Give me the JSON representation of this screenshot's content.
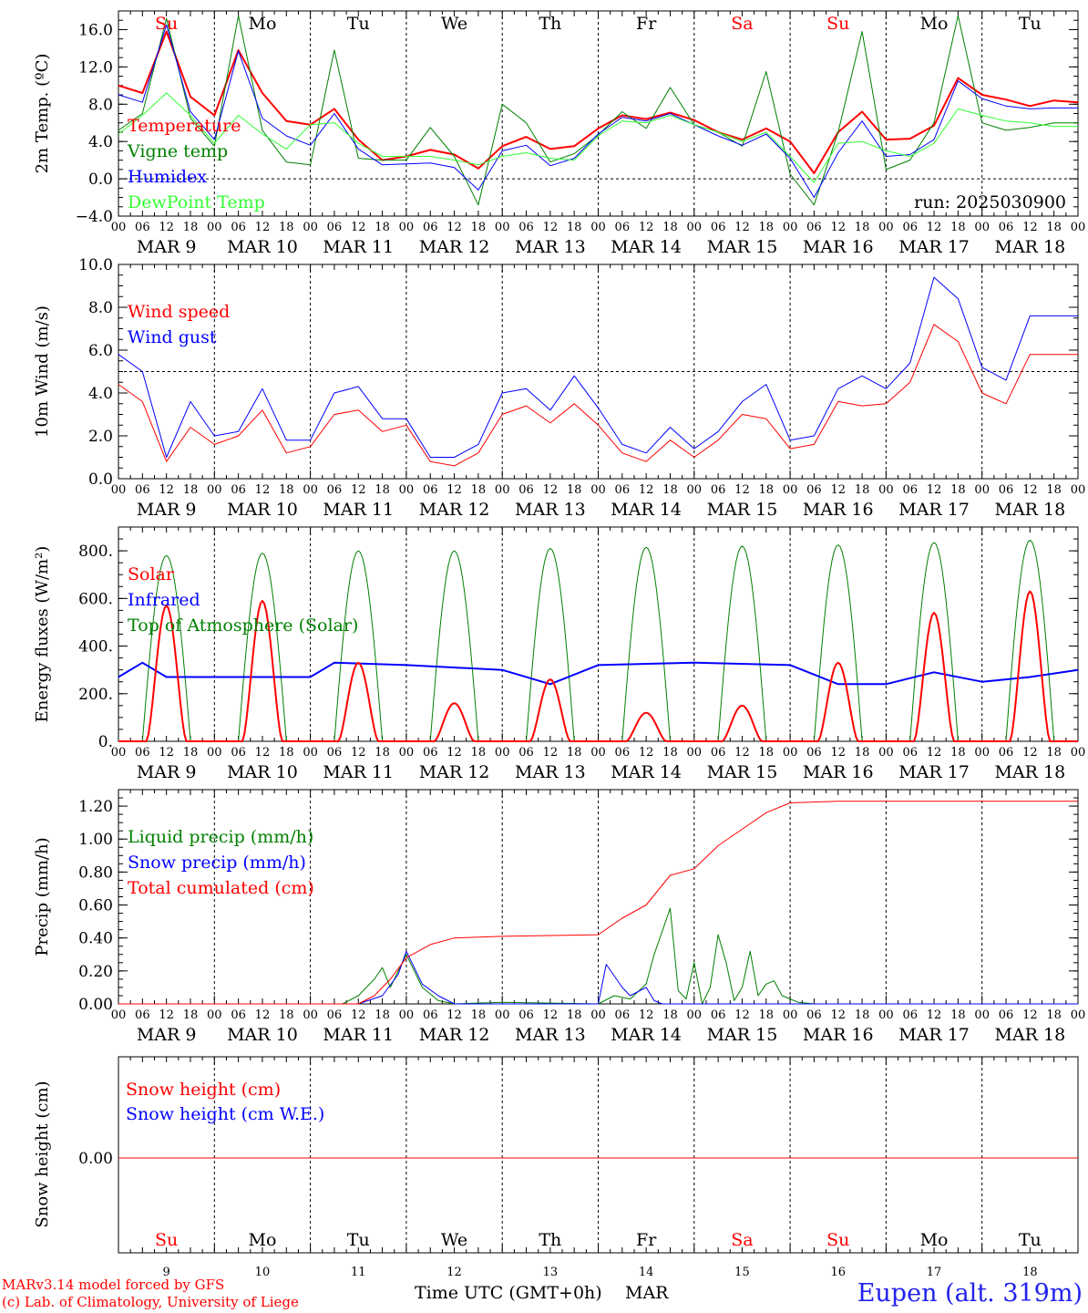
{
  "page": {
    "credit_line1": "MARv3.14 model forced by GFS",
    "credit_line2": "(c) Lab. of Climatology, University of Liege",
    "xlabel": "Time UTC (GMT+0h)",
    "month_label": "MAR",
    "station": "Eupen (alt. 319m)"
  },
  "x_axis": {
    "hour_ticks": [
      "00",
      "06",
      "12",
      "18"
    ],
    "end_tick": "00",
    "dates": [
      "MAR  9",
      "MAR 10",
      "MAR 11",
      "MAR 12",
      "MAR 13",
      "MAR 14",
      "MAR 15",
      "MAR 16",
      "MAR 17",
      "MAR 18"
    ],
    "day_numbers": [
      "9",
      "10",
      "11",
      "12",
      "13",
      "14",
      "15",
      "16",
      "17",
      "18"
    ],
    "weekdays": [
      "Su",
      "Mo",
      "Tu",
      "We",
      "Th",
      "Fr",
      "Sa",
      "Su",
      "Mo",
      "Tu"
    ],
    "weekend_color": "#ff0000",
    "weekday_color": "#000000",
    "weekend_flags": [
      true,
      false,
      false,
      false,
      false,
      false,
      true,
      true,
      false,
      false
    ]
  },
  "chart_data": [
    {
      "type": "line",
      "ylabel": "2m Temp. (ºC)",
      "ylim": [
        -4,
        18
      ],
      "yticks": [
        -4,
        0,
        4,
        8,
        12,
        16
      ],
      "ytick_labels": [
        "−4.0",
        "0.0",
        "4.0",
        "8.0",
        "12.0",
        "16.0"
      ],
      "ref_line": 0,
      "annotation": "run: 2025030900",
      "x_hours": [
        0,
        6,
        12,
        18,
        24,
        30,
        36,
        42,
        48,
        54,
        60,
        66,
        72,
        78,
        84,
        90,
        96,
        102,
        108,
        114,
        120,
        126,
        132,
        138,
        144,
        150,
        156,
        162,
        168,
        174,
        180,
        186,
        192,
        198,
        204,
        210,
        216,
        222,
        228,
        234,
        240
      ],
      "series": [
        {
          "name": "Temperature",
          "color": "#ff0000",
          "width": 2,
          "values": [
            10,
            9.2,
            15.8,
            8.8,
            6.8,
            13.8,
            9.2,
            6.2,
            5.8,
            7.5,
            4.2,
            2,
            2.4,
            3.1,
            2.6,
            1.1,
            3.5,
            4.5,
            3.2,
            3.5,
            5.4,
            6.8,
            6.4,
            7.1,
            6.3,
            5,
            4.2,
            5.4,
            4,
            0.6,
            5,
            7.2,
            4.2,
            4.3,
            5.7,
            10.8,
            9,
            8.5,
            7.8,
            8.4,
            8.2
          ]
        },
        {
          "name": "Vigne temp",
          "color": "#008000",
          "width": 1,
          "values": [
            5.2,
            7,
            17.2,
            6.5,
            3.5,
            17.5,
            5.2,
            1.8,
            1.5,
            13.8,
            2.2,
            2,
            2,
            5.5,
            2.4,
            -2.8,
            8,
            6,
            1.8,
            2.7,
            4.7,
            7.2,
            5.4,
            9.8,
            5.8,
            5,
            3.5,
            11.5,
            0.5,
            -2.8,
            5,
            15.8,
            1,
            2,
            6,
            17.5,
            6,
            5.2,
            5.5,
            6,
            6
          ]
        },
        {
          "name": "Humidex",
          "color": "#0000ff",
          "width": 1,
          "values": [
            9,
            8.2,
            16.5,
            7.2,
            4.2,
            13.7,
            6.5,
            4.6,
            3.6,
            7,
            3.2,
            1.5,
            1.6,
            1.7,
            1.2,
            -1.2,
            3,
            3.6,
            1.4,
            2.2,
            4.8,
            6.6,
            6.2,
            7,
            5.8,
            4.6,
            3.6,
            4.8,
            2.2,
            -2,
            2.8,
            6.2,
            2.4,
            2.6,
            4.2,
            10.5,
            8.6,
            7.8,
            7.5,
            7.6,
            7.6
          ]
        },
        {
          "name": "DewPoint Temp",
          "color": "#33ff33",
          "width": 1,
          "values": [
            4.8,
            6.8,
            9.2,
            6.8,
            3.8,
            6.8,
            4.8,
            3.2,
            5.8,
            6,
            3.8,
            2.4,
            2.4,
            2.4,
            2,
            1.5,
            2.4,
            2.8,
            2.2,
            2,
            4.6,
            6.2,
            6,
            6.8,
            5.8,
            5,
            4,
            5,
            2.4,
            -0.4,
            3.8,
            4,
            3,
            2.4,
            3.8,
            7.5,
            6.8,
            6.2,
            6,
            5.6,
            5.6
          ]
        }
      ]
    },
    {
      "type": "line",
      "ylabel": "10m Wind (m/s)",
      "ylim": [
        0,
        10
      ],
      "yticks": [
        0,
        2,
        4,
        6,
        8,
        10
      ],
      "ytick_labels": [
        "0.0",
        "2.0",
        "4.0",
        "6.0",
        "8.0",
        "10.0"
      ],
      "ref_line": 5,
      "x_hours": [
        0,
        6,
        12,
        18,
        24,
        30,
        36,
        42,
        48,
        54,
        60,
        66,
        72,
        78,
        84,
        90,
        96,
        102,
        108,
        114,
        120,
        126,
        132,
        138,
        144,
        150,
        156,
        162,
        168,
        174,
        180,
        186,
        192,
        198,
        204,
        210,
        216,
        222,
        228,
        234,
        240
      ],
      "series": [
        {
          "name": "Wind speed",
          "color": "#ff0000",
          "width": 1,
          "values": [
            4.4,
            3.6,
            0.8,
            2.4,
            1.6,
            2,
            3.2,
            1.2,
            1.5,
            3,
            3.2,
            2.2,
            2.5,
            0.8,
            0.6,
            1.2,
            3,
            3.4,
            2.6,
            3.5,
            2.5,
            1.2,
            0.8,
            1.8,
            1,
            1.8,
            3,
            2.8,
            1.4,
            1.6,
            3.6,
            3.4,
            3.5,
            4.5,
            7.2,
            6.4,
            4,
            3.5,
            5.8,
            5.8,
            5.8
          ]
        },
        {
          "name": "Wind gust",
          "color": "#0000ff",
          "width": 1,
          "values": [
            5.8,
            5,
            1,
            3.6,
            2,
            2.2,
            4.2,
            1.8,
            1.8,
            4,
            4.3,
            2.8,
            2.8,
            1,
            1,
            1.6,
            4,
            4.2,
            3.2,
            4.8,
            3.3,
            1.6,
            1.2,
            2.4,
            1.4,
            2.2,
            3.6,
            4.4,
            1.8,
            2,
            4.2,
            4.8,
            4.2,
            5.4,
            9.4,
            8.4,
            5.2,
            4.6,
            7.6,
            7.6,
            7.6
          ]
        }
      ]
    },
    {
      "type": "line",
      "ylabel": "Energy fluxes (W/m²)",
      "ylim": [
        0,
        900
      ],
      "yticks": [
        0,
        200,
        400,
        600,
        800
      ],
      "ytick_labels": [
        "0.",
        "200.",
        "400.",
        "600.",
        "800."
      ],
      "top_peaks": [
        780,
        790,
        800,
        800,
        810,
        815,
        820,
        825,
        835,
        845
      ],
      "solar_peaks": [
        570,
        590,
        330,
        160,
        260,
        120,
        150,
        330,
        540,
        630
      ],
      "infrared": {
        "x_hours": [
          0,
          6,
          12,
          24,
          48,
          54,
          72,
          96,
          108,
          120,
          144,
          168,
          180,
          192,
          204,
          216,
          228,
          240
        ],
        "values": [
          270,
          330,
          270,
          270,
          270,
          330,
          320,
          300,
          240,
          320,
          330,
          320,
          240,
          240,
          290,
          250,
          270,
          300
        ]
      },
      "series": [
        {
          "name": "Solar",
          "color": "#ff0000",
          "width": 2
        },
        {
          "name": "Infrared",
          "color": "#0000ff",
          "width": 2
        },
        {
          "name": "Top of Atmosphere (Solar)",
          "color": "#008000",
          "width": 1
        }
      ]
    },
    {
      "type": "line",
      "ylabel": "Precip (mm/h)",
      "ylim": [
        0,
        1.3
      ],
      "yticks": [
        0,
        0.2,
        0.4,
        0.6,
        0.8,
        1.0,
        1.2
      ],
      "ytick_labels": [
        "0.00",
        "0.20",
        "0.40",
        "0.60",
        "0.80",
        "1.00",
        "1.20"
      ],
      "series": [
        {
          "name": "Liquid precip (mm/h)",
          "color": "#008000",
          "width": 1,
          "x_hours": [
            0,
            56,
            60,
            64,
            66,
            68,
            72,
            76,
            80,
            84,
            96,
            120,
            124,
            128,
            132,
            134,
            138,
            140,
            142,
            144,
            146,
            148,
            150,
            152,
            154,
            156,
            158,
            160,
            162,
            164,
            166,
            168,
            170,
            174,
            240
          ],
          "values": [
            0,
            0,
            0.05,
            0.15,
            0.22,
            0.1,
            0.3,
            0.1,
            0.02,
            0,
            0.01,
            0,
            0.05,
            0.03,
            0.12,
            0.3,
            0.58,
            0.08,
            0.03,
            0.25,
            0,
            0.1,
            0.42,
            0.25,
            0.02,
            0.1,
            0.32,
            0.05,
            0.12,
            0.14,
            0.05,
            0.03,
            0.01,
            0,
            0
          ]
        },
        {
          "name": "Snow precip (mm/h)",
          "color": "#0000ff",
          "width": 1,
          "x_hours": [
            0,
            60,
            66,
            70,
            72,
            76,
            80,
            84,
            96,
            120,
            122,
            126,
            128,
            132,
            134,
            136,
            138,
            240
          ],
          "values": [
            0,
            0,
            0.05,
            0.18,
            0.32,
            0.12,
            0.05,
            0,
            0,
            0,
            0.24,
            0.1,
            0.05,
            0.1,
            0.02,
            0,
            0,
            0
          ]
        },
        {
          "name": "Total cumulated (cm)",
          "color": "#ff0000",
          "width": 1,
          "x_hours": [
            0,
            60,
            64,
            68,
            72,
            78,
            84,
            96,
            120,
            126,
            132,
            138,
            144,
            150,
            156,
            162,
            168,
            180,
            240
          ],
          "values": [
            0,
            0,
            0.05,
            0.15,
            0.28,
            0.36,
            0.4,
            0.41,
            0.42,
            0.52,
            0.6,
            0.78,
            0.82,
            0.96,
            1.06,
            1.16,
            1.22,
            1.23,
            1.23
          ]
        }
      ]
    },
    {
      "type": "line",
      "ylabel": "Snow height (cm)",
      "yticks": [
        0
      ],
      "ytick_labels": [
        "0.00"
      ],
      "series": [
        {
          "name": "Snow height (cm)",
          "color": "#ff0000",
          "width": 1,
          "values": [
            0,
            0
          ]
        },
        {
          "name": "Snow height (cm W.E.)",
          "color": "#0000ff",
          "width": 1,
          "values": [
            0,
            0
          ]
        }
      ]
    }
  ]
}
